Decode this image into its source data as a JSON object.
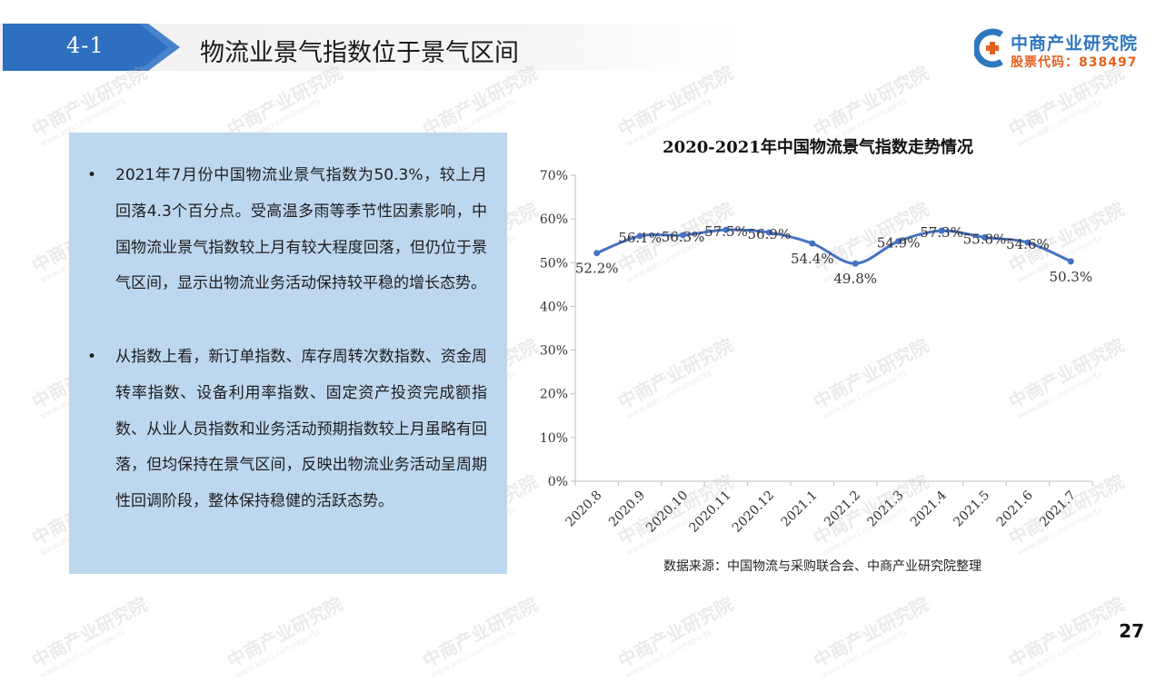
{
  "header": {
    "section_number": "4-1",
    "title": "物流业景气指数位于景气区间"
  },
  "logo": {
    "name": "中商产业研究院",
    "code": "股票代码：838497"
  },
  "watermark": {
    "cn": "中商产业研究院",
    "url": "www.askci.com/reports"
  },
  "text_panel": {
    "bullets": [
      {
        "symbol": "•",
        "text": "2021年7月份中国物流业景气指数为50.3%，较上月回落4.3个百分点。受高温多雨等季节性因素影响，中国物流业景气指数较上月有较大程度回落，但仍位于景气区间，显示出物流业务活动保持较平稳的增长态势。"
      },
      {
        "symbol": "•",
        "text": "从指数上看，新订单指数、库存周转次数指数、资金周转率指数、设备利用率指数、固定资产投资完成额指数、从业人员指数和业务活动预期指数较上月虽略有回落，但均保持在景气区间，反映出物流业务活动呈周期性回调阶段，整体保持稳健的活跃态势。"
      }
    ]
  },
  "chart_data": {
    "type": "line",
    "title": "2020-2021年中国物流景气指数走势情况",
    "categories": [
      "2020.8",
      "2020.9",
      "2020.10",
      "2020.11",
      "2020.12",
      "2021.1",
      "2021.2",
      "2021.3",
      "2021.4",
      "2021.5",
      "2021.6",
      "2021.7"
    ],
    "values": [
      52.2,
      56.1,
      56.3,
      57.5,
      56.9,
      54.4,
      49.8,
      54.9,
      57.3,
      55.8,
      54.6,
      50.3
    ],
    "data_labels": [
      "52.2%",
      "56.1%",
      "56.3%",
      "57.5%",
      "56.9%",
      "54.4%",
      "49.8%",
      "54.9%",
      "57.3%",
      "55.8%",
      "54.6%",
      "50.3%"
    ],
    "yticks": [
      "0%",
      "10%",
      "20%",
      "30%",
      "40%",
      "50%",
      "60%",
      "70%"
    ],
    "ylim": [
      0,
      70
    ],
    "line_color": "#4472c4",
    "grid": false,
    "smooth": true
  },
  "source": "数据来源：中国物流与采购联合会、中商产业研究院整理",
  "page_number": "27"
}
